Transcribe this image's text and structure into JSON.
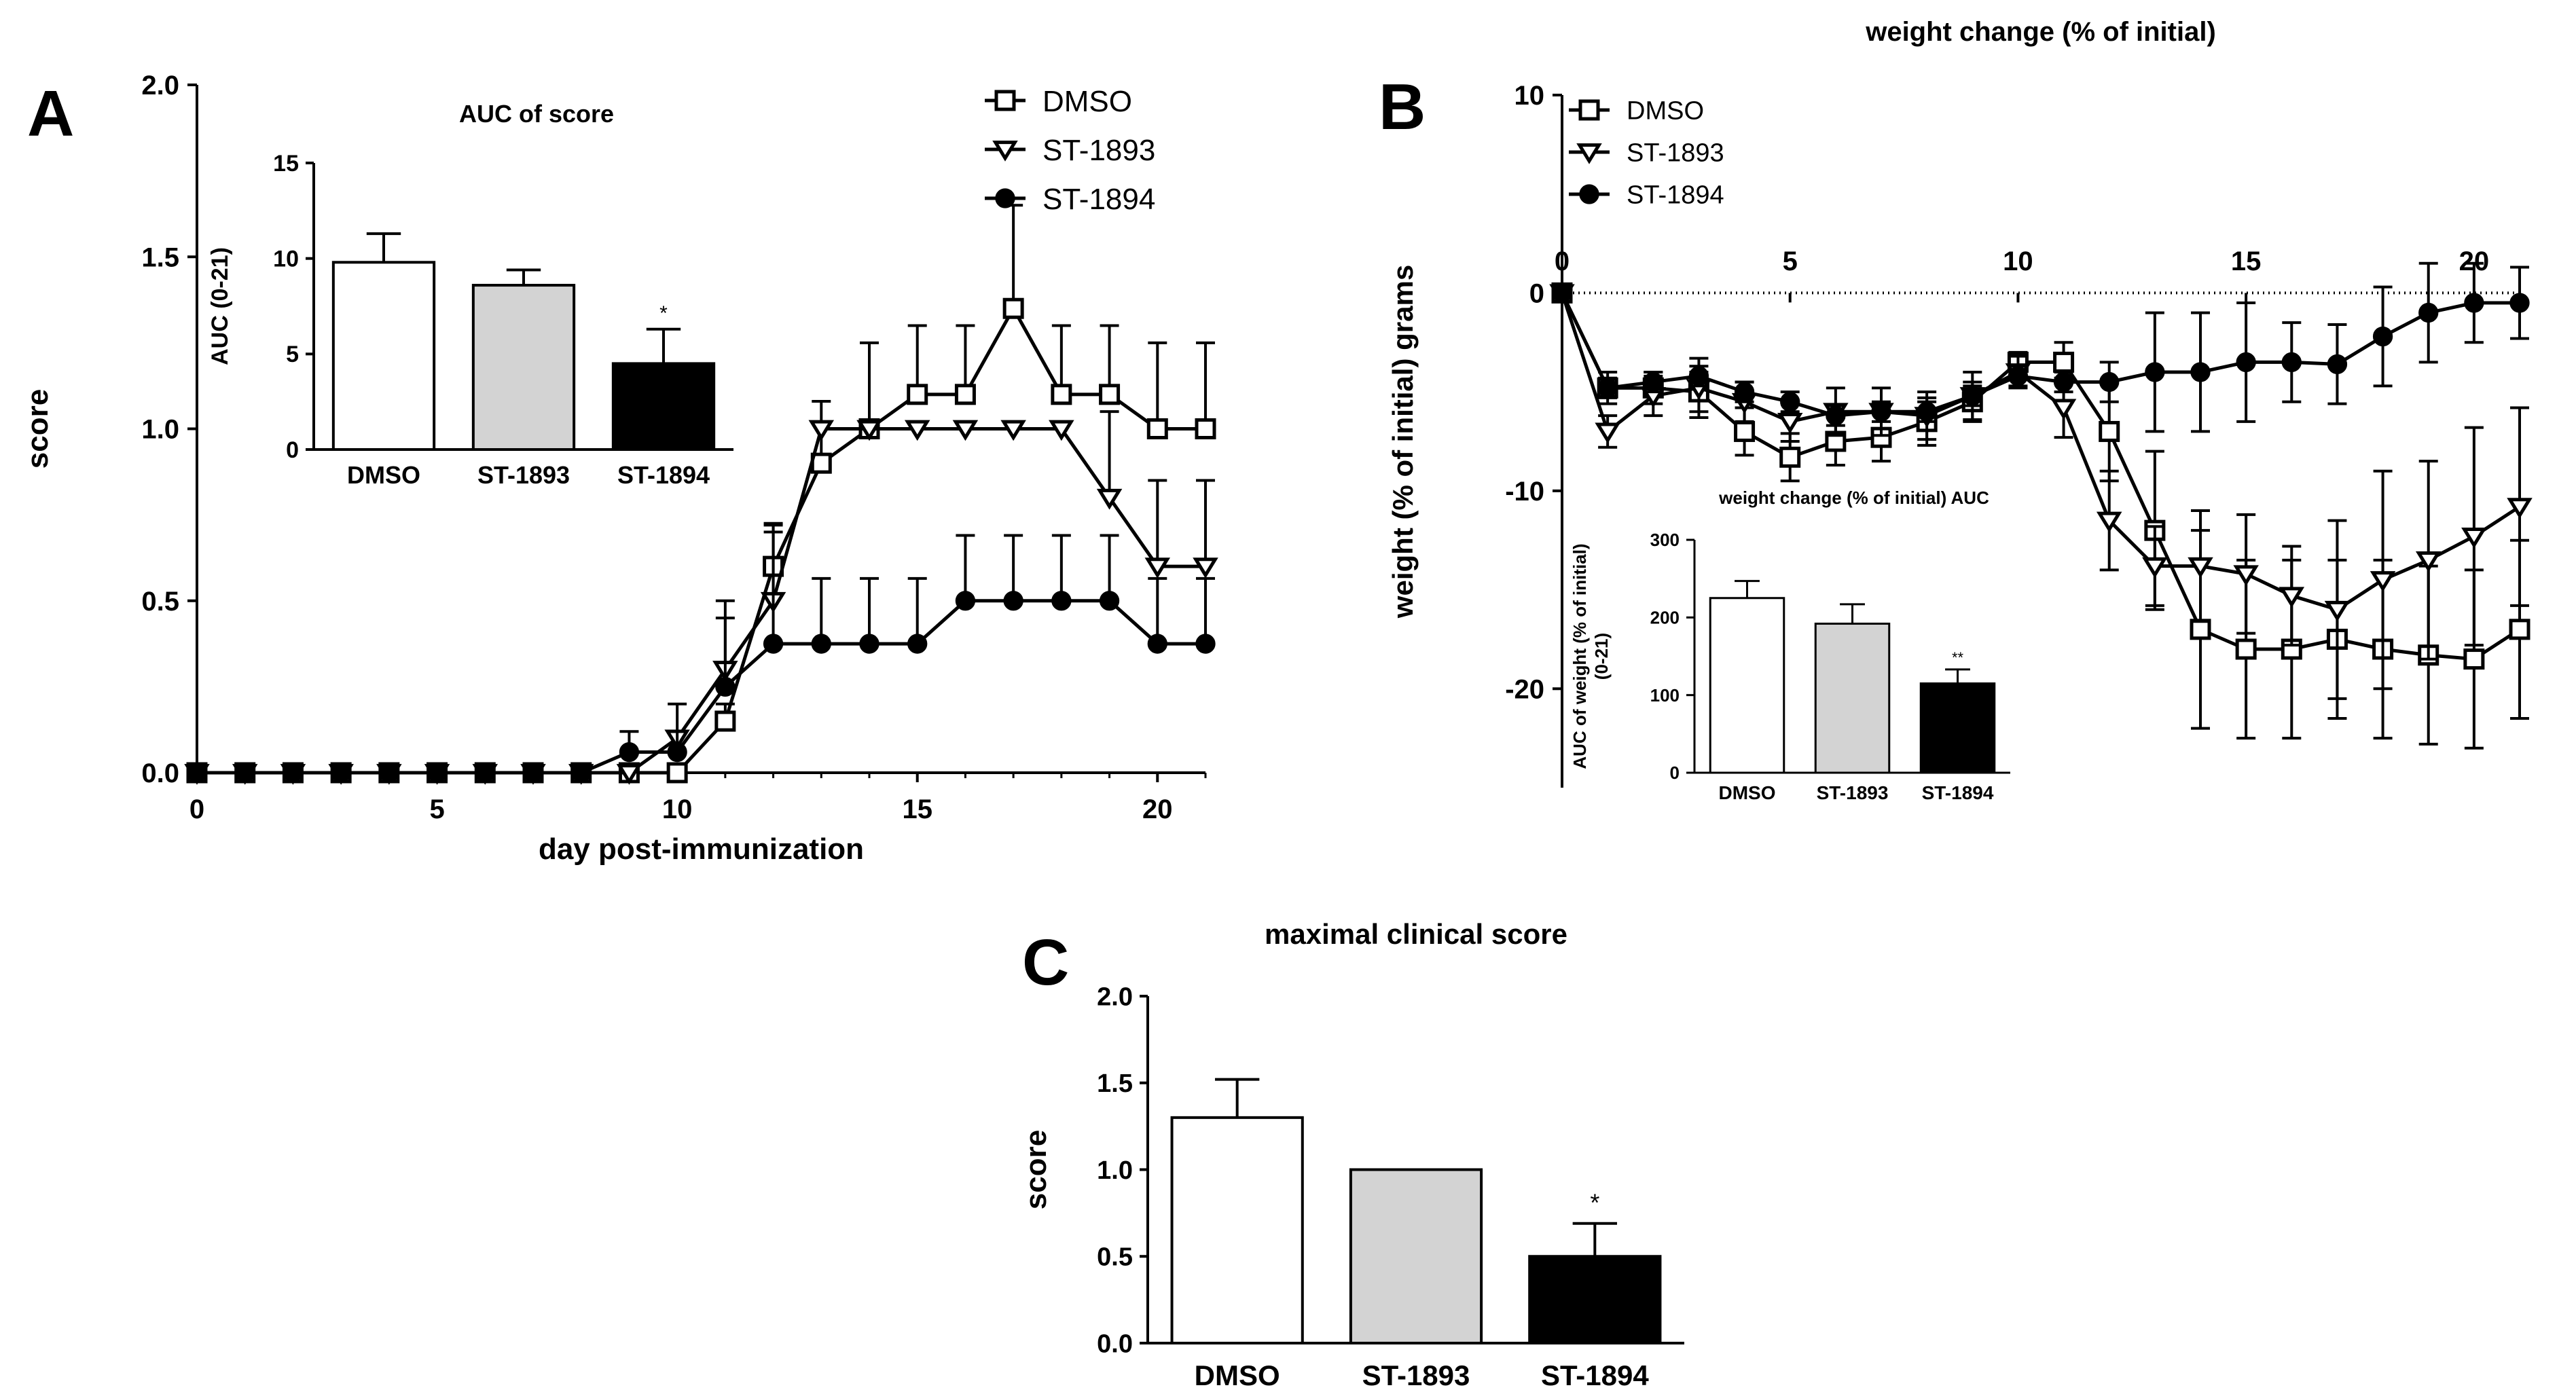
{
  "colors": {
    "axis": "#000000",
    "white_fill": "#ffffff",
    "gray_fill": "#d3d3d3",
    "black_fill": "#000000"
  },
  "panels": {
    "A": {
      "label": "A"
    },
    "B": {
      "label": "B"
    },
    "C": {
      "label": "C"
    }
  },
  "chart_data": [
    {
      "id": "A_main",
      "type": "line",
      "title": "",
      "xlabel": "day post-immunization",
      "ylabel": "score",
      "xlim": [
        0,
        21
      ],
      "ylim": [
        0,
        2.0
      ],
      "x_ticks": [
        0,
        5,
        10,
        15,
        20
      ],
      "y_ticks": [
        "0.0",
        "0.5",
        "1.0",
        "1.5",
        "2.0"
      ],
      "legend": [
        "DMSO",
        "ST-1893",
        "ST-1894"
      ],
      "legend_position": "top-right",
      "x": [
        0,
        1,
        2,
        3,
        4,
        5,
        6,
        7,
        8,
        9,
        10,
        11,
        12,
        13,
        14,
        15,
        16,
        17,
        18,
        19,
        20,
        21
      ],
      "series": [
        {
          "name": "DMSO",
          "marker": "square-open",
          "values": [
            0,
            0,
            0,
            0,
            0,
            0,
            0,
            0,
            0,
            0,
            0,
            0.15,
            0.6,
            0.9,
            1.0,
            1.1,
            1.1,
            1.35,
            1.1,
            1.1,
            1.0,
            1.0
          ],
          "errors": [
            0,
            0,
            0,
            0,
            0,
            0,
            0,
            0,
            0,
            0,
            0,
            0.05,
            0.12,
            0.12,
            0.25,
            0.2,
            0.2,
            0.3,
            0.2,
            0.2,
            0.25,
            0.25
          ]
        },
        {
          "name": "ST-1893",
          "marker": "triangle-down-open",
          "values": [
            0,
            0,
            0,
            0,
            0,
            0,
            0,
            0,
            0,
            0,
            0.1,
            0.3,
            0.5,
            1.0,
            1.0,
            1.0,
            1.0,
            1.0,
            1.0,
            0.8,
            0.6,
            0.6
          ],
          "errors": [
            0,
            0,
            0,
            0,
            0,
            0,
            0,
            0,
            0,
            0,
            0.1,
            0.15,
            0.2,
            0.08,
            0,
            0,
            0,
            0,
            0,
            0.25,
            0.25,
            0.25
          ]
        },
        {
          "name": "ST-1894",
          "marker": "circle-filled",
          "values": [
            0,
            0,
            0,
            0,
            0,
            0,
            0,
            0,
            0,
            0.06,
            0.06,
            0.25,
            0.375,
            0.375,
            0.375,
            0.375,
            0.5,
            0.5,
            0.5,
            0.5,
            0.375,
            0.375
          ],
          "errors": [
            0,
            0,
            0,
            0,
            0,
            0,
            0,
            0,
            0,
            0.06,
            0.06,
            0.25,
            0.35,
            0.19,
            0.19,
            0.19,
            0.19,
            0.19,
            0.19,
            0.19,
            0.19,
            0.19
          ]
        }
      ]
    },
    {
      "id": "A_inset",
      "type": "bar",
      "title": "AUC of score",
      "ylabel": "AUC (0-21)",
      "ylim": [
        0,
        15
      ],
      "y_ticks": [
        "0",
        "5",
        "10",
        "15"
      ],
      "categories": [
        "DMSO",
        "ST-1893",
        "ST-1894"
      ],
      "values": [
        9.8,
        8.6,
        4.5
      ],
      "errors": [
        1.5,
        0.8,
        1.8
      ],
      "fills": [
        "white",
        "gray",
        "black"
      ],
      "annotations": [
        "",
        "",
        "*"
      ]
    },
    {
      "id": "B_main",
      "type": "line",
      "title": "weight change (% of initial)",
      "xlabel": "",
      "ylabel": "weight (% of initial) grams",
      "xlim": [
        0,
        21
      ],
      "ylim": [
        -25,
        10
      ],
      "x_ticks": [
        0,
        5,
        10,
        15,
        20
      ],
      "y_ticks": [
        "10",
        "0",
        "-10",
        "-20"
      ],
      "legend": [
        "DMSO",
        "ST-1893",
        "ST-1894"
      ],
      "legend_position": "top-left",
      "x": [
        0,
        1,
        2,
        3,
        4,
        5,
        6,
        7,
        8,
        9,
        10,
        11,
        12,
        13,
        14,
        15,
        16,
        17,
        18,
        19,
        20,
        21
      ],
      "series": [
        {
          "name": "DMSO",
          "marker": "square-open",
          "values": [
            0,
            -4.8,
            -4.8,
            -5.0,
            -7.0,
            -8.3,
            -7.5,
            -7.3,
            -6.5,
            -5.5,
            -3.5,
            -3.5,
            -7.0,
            -12.0,
            -17.0,
            -18.0,
            -18.0,
            -17.5,
            -18.0,
            -18.3,
            -18.5,
            -17.0
          ],
          "errors": [
            0,
            0.8,
            0.8,
            1.0,
            1.2,
            1.2,
            1.2,
            1.2,
            1.2,
            1.0,
            0.5,
            1.0,
            2.5,
            4.0,
            5.0,
            4.5,
            4.5,
            4.0,
            4.5,
            4.5,
            4.5,
            4.5
          ]
        },
        {
          "name": "ST-1893",
          "marker": "triangle-down-open",
          "values": [
            0,
            -7.0,
            -5.2,
            -4.8,
            -5.5,
            -6.5,
            -6.0,
            -6.0,
            -6.2,
            -5.2,
            -4.0,
            -5.8,
            -11.5,
            -13.8,
            -13.8,
            -14.2,
            -15.3,
            -16.0,
            -14.5,
            -13.5,
            -12.3,
            -10.8
          ],
          "errors": [
            0,
            0.8,
            1.0,
            1.5,
            1.0,
            1.0,
            1.2,
            1.2,
            1.2,
            1.2,
            0.8,
            1.5,
            2.5,
            2.0,
            2.8,
            3.0,
            2.5,
            4.5,
            5.5,
            5.0,
            5.5,
            5.0
          ]
        },
        {
          "name": "ST-1894",
          "marker": "circle-filled",
          "values": [
            0,
            -4.8,
            -4.5,
            -4.2,
            -5.0,
            -5.5,
            -6.2,
            -6.0,
            -6.0,
            -5.2,
            -4.2,
            -4.5,
            -4.5,
            -4.0,
            -4.0,
            -3.5,
            -3.5,
            -3.6,
            -2.2,
            -1.0,
            -0.5,
            -0.5
          ],
          "errors": [
            0,
            0.5,
            0.5,
            0.5,
            0.5,
            0.5,
            0.5,
            0.5,
            0.5,
            0.5,
            0.5,
            0.5,
            1.0,
            3.0,
            3.0,
            3.0,
            2.0,
            2.0,
            2.5,
            2.5,
            2.0,
            1.8
          ]
        }
      ]
    },
    {
      "id": "B_inset",
      "type": "bar",
      "title": "weight change (% of initial) AUC",
      "ylabel": "AUC of weight (% of initial) (0-21)",
      "ylim": [
        0,
        300
      ],
      "y_ticks": [
        "0",
        "100",
        "200",
        "300"
      ],
      "categories": [
        "DMSO",
        "ST-1893",
        "ST-1894"
      ],
      "values": [
        225,
        192,
        115
      ],
      "errors": [
        22,
        25,
        18
      ],
      "fills": [
        "white",
        "gray",
        "black"
      ],
      "annotations": [
        "",
        "",
        "**"
      ]
    },
    {
      "id": "C",
      "type": "bar",
      "title": "maximal clinical score",
      "ylabel": "score",
      "ylim": [
        0,
        2.0
      ],
      "y_ticks": [
        "0.0",
        "0.5",
        "1.0",
        "1.5",
        "2.0"
      ],
      "categories": [
        "DMSO",
        "ST-1893",
        "ST-1894"
      ],
      "values": [
        1.3,
        1.0,
        0.5
      ],
      "errors": [
        0.22,
        0,
        0.19
      ],
      "fills": [
        "white",
        "gray",
        "black"
      ],
      "annotations": [
        "",
        "",
        "*"
      ]
    }
  ]
}
